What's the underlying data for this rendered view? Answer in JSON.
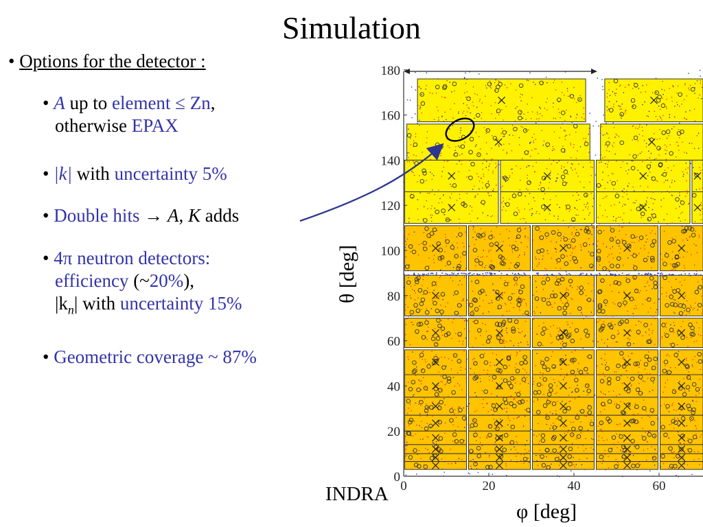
{
  "title": "Simulation",
  "options": {
    "label": "Options for the detector :",
    "bullet": "•"
  },
  "items": {
    "i1": {
      "a": "A",
      "up_to": " up to ",
      "element": "element ≤ Zn",
      "comma": ",",
      "otherwise": "otherwise ",
      "epax": "EPAX"
    },
    "i2": {
      "k": "|k|",
      "with": " with ",
      "unc": "uncertainty 5%"
    },
    "i3": {
      "double_hits": "Double hits",
      "arrow": " → ",
      "a": "A",
      "sep": ", ",
      "k": "K",
      "adds": " adds"
    },
    "i4": {
      "four_pi": "4π",
      "neutron": " neutron detectors:",
      "eff": "efficiency",
      "open": " (~",
      "pct": "20%",
      "close": "),",
      "kn_open": "|k",
      "kn_sub": "n",
      "kn_close": "|",
      "with": " with ",
      "unc": "uncertainty 15%"
    },
    "i5": {
      "geo": "Geometric coverage ~ 87%"
    }
  },
  "plot": {
    "y_axis_label": "θ [deg]",
    "x_axis_label": "φ [deg]",
    "detector_name": "INDRA",
    "y_ticks": [
      "180",
      "160",
      "140",
      "120",
      "100",
      "80",
      "60",
      "40",
      "20",
      "0"
    ],
    "x_ticks": [
      "0",
      "20",
      "40",
      "60"
    ],
    "colors": {
      "yellow": "#fff200",
      "orange": "#ffc400",
      "red_dots": "#e8201a",
      "blue_dots": "#2030c8",
      "arrow": "#2d3592"
    }
  }
}
